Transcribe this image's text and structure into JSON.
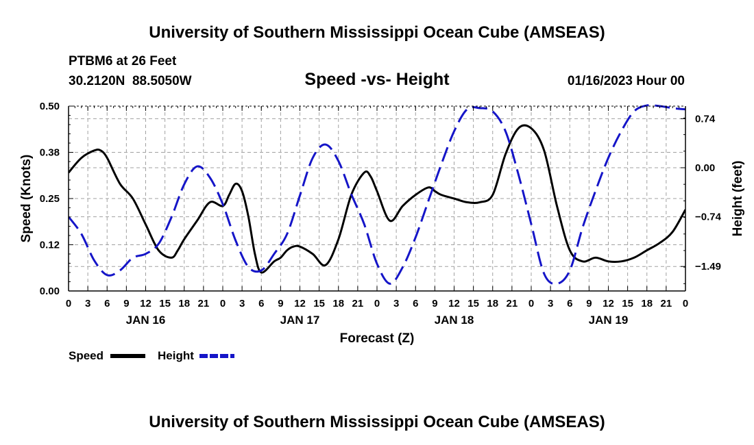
{
  "header": {
    "title": "University of Southern Mississippi Ocean Cube (AMSEAS)",
    "station_line": "PTBM6 at 26 Feet",
    "coords_line": "30.2120N  88.5050W",
    "chart_title": "Speed -vs- Height",
    "datetime": "01/16/2023 Hour 00"
  },
  "footer": {
    "title": "University of Southern Mississippi Ocean Cube (AMSEAS)"
  },
  "colors": {
    "speed": "#000000",
    "height": "#1515c8",
    "grid": "#a0a0a0"
  },
  "chart_data": {
    "type": "line",
    "xlabel": "Forecast (Z)",
    "ylabel_left": "Speed (Knots)",
    "ylabel_right": "Height (feet)",
    "grid": true,
    "legend_placement": "bottom-left",
    "xlim": [
      0,
      96
    ],
    "x_ticks": [
      0,
      3,
      6,
      9,
      12,
      15,
      18,
      21,
      24,
      27,
      30,
      33,
      36,
      39,
      42,
      45,
      48,
      51,
      54,
      57,
      60,
      63,
      66,
      69,
      72,
      75,
      78,
      81,
      84,
      87,
      90,
      93,
      96
    ],
    "x_tick_labels": [
      "0",
      "3",
      "6",
      "9",
      "12",
      "15",
      "18",
      "21",
      "0",
      "3",
      "6",
      "9",
      "12",
      "15",
      "18",
      "21",
      "0",
      "3",
      "6",
      "9",
      "12",
      "15",
      "18",
      "21",
      "0",
      "3",
      "6",
      "9",
      "12",
      "15",
      "18",
      "21",
      "0"
    ],
    "day_labels": [
      {
        "x": 12,
        "label": "JAN 16"
      },
      {
        "x": 36,
        "label": "JAN 17"
      },
      {
        "x": 60,
        "label": "JAN 18"
      },
      {
        "x": 84,
        "label": "JAN 19"
      }
    ],
    "ylim_left": [
      0,
      0.5
    ],
    "y_left_ticks": [
      0,
      0.125,
      0.25,
      0.375,
      0.5
    ],
    "y_left_tick_labels": [
      "0.00",
      "0.12",
      "0.25",
      "0.38",
      "0.50"
    ],
    "ylim_right": [
      -1.86,
      0.93
    ],
    "y_right_ticks": [
      -1.49,
      -0.74,
      0.0,
      0.74
    ],
    "y_right_tick_labels": [
      "-1.49",
      "-0.74",
      "0.00",
      "0.74"
    ],
    "series": [
      {
        "name": "Speed",
        "axis": "left",
        "style": "solid",
        "x": [
          0,
          2,
          4,
          5,
          6,
          8,
          10,
          12,
          14,
          16,
          17,
          18,
          20,
          22,
          24,
          25,
          26,
          27,
          28,
          29,
          30,
          32,
          33,
          34,
          35,
          36,
          38,
          40,
          42,
          44,
          46,
          47,
          48,
          50,
          52,
          54,
          56,
          57,
          58,
          60,
          62,
          64,
          66,
          68,
          70,
          72,
          74,
          76,
          78,
          80,
          82,
          84,
          86,
          88,
          90,
          92,
          94,
          96
        ],
        "y": [
          0.32,
          0.36,
          0.38,
          0.38,
          0.36,
          0.29,
          0.25,
          0.18,
          0.11,
          0.09,
          0.11,
          0.14,
          0.19,
          0.24,
          0.23,
          0.26,
          0.29,
          0.27,
          0.2,
          0.1,
          0.05,
          0.08,
          0.09,
          0.11,
          0.12,
          0.12,
          0.1,
          0.07,
          0.14,
          0.26,
          0.32,
          0.31,
          0.27,
          0.19,
          0.23,
          0.26,
          0.28,
          0.27,
          0.26,
          0.25,
          0.24,
          0.24,
          0.26,
          0.37,
          0.44,
          0.44,
          0.38,
          0.23,
          0.11,
          0.08,
          0.09,
          0.08,
          0.08,
          0.09,
          0.11,
          0.13,
          0.16,
          0.22
        ]
      },
      {
        "name": "Height",
        "axis": "right",
        "style": "dashed",
        "x": [
          0,
          2,
          4,
          6,
          8,
          10,
          12,
          14,
          16,
          18,
          20,
          22,
          24,
          26,
          28,
          30,
          32,
          34,
          36,
          38,
          40,
          42,
          44,
          46,
          48,
          50,
          52,
          54,
          56,
          58,
          60,
          62,
          64,
          66,
          68,
          70,
          72,
          74,
          76,
          78,
          80,
          82,
          84,
          86,
          88,
          90,
          92,
          94,
          96
        ],
        "y": [
          -0.74,
          -1.0,
          -1.4,
          -1.62,
          -1.55,
          -1.36,
          -1.3,
          -1.15,
          -0.75,
          -0.25,
          0.02,
          -0.15,
          -0.55,
          -1.1,
          -1.5,
          -1.55,
          -1.3,
          -1.0,
          -0.42,
          0.15,
          0.35,
          0.1,
          -0.4,
          -0.85,
          -1.45,
          -1.75,
          -1.5,
          -1.05,
          -0.5,
          0.05,
          0.55,
          0.88,
          0.9,
          0.85,
          0.55,
          -0.1,
          -0.85,
          -1.6,
          -1.75,
          -1.55,
          -0.9,
          -0.35,
          0.15,
          0.55,
          0.85,
          0.94,
          0.93,
          0.9,
          0.88
        ]
      }
    ],
    "legend": [
      {
        "label": "Speed",
        "series": "Speed"
      },
      {
        "label": "Height",
        "series": "Height"
      }
    ]
  }
}
